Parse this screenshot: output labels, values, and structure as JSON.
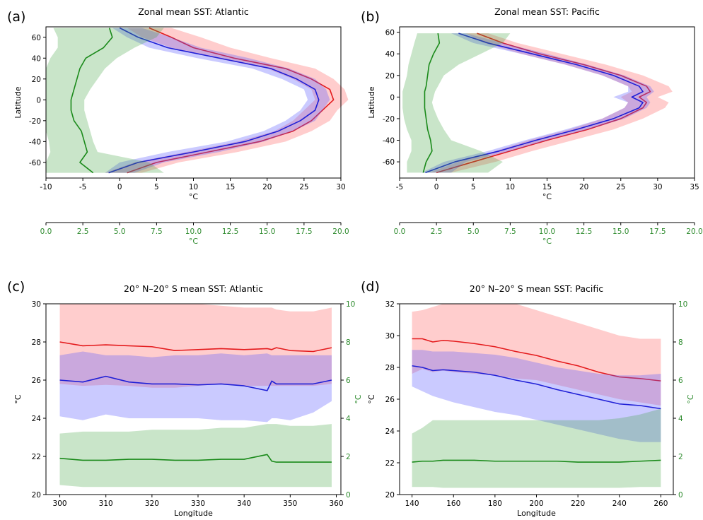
{
  "colors": {
    "red": "#e41a1c",
    "blue": "#1f1fd6",
    "green": "#1a8a1a",
    "redFill": "rgba(255,90,90,0.30)",
    "blueFill": "rgba(90,90,255,0.32)",
    "greenFill": "rgba(60,160,60,0.28)",
    "greenAxis": "#2e8b2e"
  },
  "chart_data": [
    {
      "id": "a",
      "letter": "(a)",
      "type": "line",
      "orientation": "profile",
      "title": "Zonal mean SST: Atlantic",
      "xlabel": "°C",
      "ylabel": "Latitude",
      "x2label": "°C",
      "xlim": [
        -10,
        30
      ],
      "ylim": [
        -75,
        70
      ],
      "x2lim": [
        0,
        20
      ],
      "xticks": [
        -10,
        -5,
        0,
        5,
        10,
        15,
        20,
        25,
        30
      ],
      "yticks": [
        -60,
        -40,
        -20,
        0,
        20,
        40,
        60
      ],
      "x2ticks": [
        0.0,
        2.5,
        5.0,
        7.5,
        10.0,
        12.5,
        15.0,
        17.5,
        20.0
      ],
      "lat": [
        -70,
        -60,
        -50,
        -40,
        -30,
        -20,
        -10,
        0,
        10,
        20,
        30,
        40,
        50,
        60,
        69
      ],
      "series": [
        {
          "color": "red",
          "mean": [
            1,
            5,
            12,
            19,
            23.5,
            26,
            27.5,
            29,
            28.5,
            26,
            22.5,
            15.5,
            10,
            7,
            4
          ],
          "lower": [
            -2,
            2,
            9,
            16,
            21,
            23.5,
            25,
            26.5,
            26,
            23.5,
            20,
            13,
            7,
            3,
            1
          ],
          "upper": [
            3,
            8,
            16,
            22.5,
            26,
            28.5,
            29.5,
            31,
            30.5,
            29,
            26.5,
            20.5,
            15,
            11,
            7
          ]
        },
        {
          "color": "blue",
          "mean": [
            -1.5,
            2.5,
            10,
            17,
            21.5,
            24.5,
            26.5,
            27,
            26.5,
            24,
            20.5,
            13.5,
            6.5,
            2.5,
            0
          ],
          "lower": [
            -2,
            0,
            6.5,
            14.5,
            19.5,
            22.5,
            24.5,
            25.5,
            25,
            22,
            18,
            10.5,
            4,
            1,
            -1
          ],
          "upper": [
            2,
            6,
            13.5,
            19.5,
            23.5,
            26.5,
            27.5,
            28.5,
            28,
            26.5,
            23,
            17.5,
            11,
            7,
            3
          ]
        },
        {
          "color": "green",
          "axis": "x2",
          "mean": [
            3.2,
            2.3,
            2.8,
            2.6,
            2.4,
            1.9,
            1.7,
            1.7,
            1.9,
            2.1,
            2.3,
            2.7,
            3.9,
            4.5,
            4.3
          ],
          "lower": [
            0,
            0,
            0.3,
            0.2,
            0,
            0,
            0,
            0,
            0,
            0,
            0,
            0.3,
            0.8,
            0.8,
            0.5
          ],
          "upper": [
            8,
            7,
            3.5,
            3.2,
            3.0,
            2.8,
            2.6,
            2.6,
            3.0,
            3.5,
            4.0,
            4.8,
            6.0,
            7.5,
            8
          ]
        }
      ]
    },
    {
      "id": "b",
      "letter": "(b)",
      "type": "line",
      "orientation": "profile",
      "title": "Zonal mean SST: Pacific",
      "xlabel": "°C",
      "ylabel": "Latitude",
      "x2label": "°C",
      "xlim": [
        -5,
        35
      ],
      "ylim": [
        -75,
        65
      ],
      "x2lim": [
        0,
        20
      ],
      "xticks": [
        -5,
        0,
        5,
        10,
        15,
        20,
        25,
        30,
        35
      ],
      "yticks": [
        -60,
        -40,
        -20,
        0,
        20,
        40,
        60
      ],
      "x2ticks": [
        0.0,
        2.5,
        5.0,
        7.5,
        10.0,
        12.5,
        15.0,
        17.5,
        20.0
      ],
      "lat": [
        -70,
        -60,
        -50,
        -40,
        -30,
        -20,
        -10,
        -5,
        0,
        5,
        10,
        20,
        30,
        40,
        50,
        59
      ],
      "series": [
        {
          "color": "red",
          "mean": [
            0,
            5,
            10,
            15,
            20.5,
            25,
            28,
            28.5,
            27.5,
            29,
            28.5,
            25,
            20,
            14,
            9,
            5.5
          ],
          "lower": [
            -1,
            3,
            8,
            12.5,
            18,
            22.5,
            25.5,
            26,
            25,
            26.5,
            26,
            22.5,
            17.5,
            11.5,
            6.5,
            4
          ],
          "upper": [
            2,
            8,
            13,
            18.5,
            24,
            28,
            31,
            31.5,
            30,
            32,
            31.5,
            28,
            23,
            17,
            11,
            7
          ]
        },
        {
          "color": "blue",
          "mean": [
            -1.5,
            2.5,
            8.5,
            13.5,
            19,
            24,
            27.5,
            28,
            26.5,
            28,
            27.5,
            24,
            19,
            13,
            7,
            3
          ],
          "lower": [
            -2,
            1,
            7,
            12,
            17.5,
            22.5,
            25.5,
            26,
            24,
            26,
            26,
            22.5,
            17.5,
            11.5,
            5,
            2
          ],
          "upper": [
            2,
            4,
            10,
            15,
            20.5,
            25.5,
            28.5,
            29,
            28.5,
            29.5,
            29,
            25.5,
            20.5,
            15,
            9,
            4
          ]
        },
        {
          "color": "green",
          "axis": "x2",
          "mean": [
            1.6,
            1.8,
            2.2,
            2.1,
            1.9,
            1.8,
            1.7,
            1.7,
            1.7,
            1.7,
            1.8,
            1.9,
            2.0,
            2.3,
            2.7,
            2.6
          ],
          "lower": [
            0.5,
            0.5,
            0.8,
            0.8,
            0.5,
            0.3,
            0.2,
            0.2,
            0.2,
            0.2,
            0.3,
            0.5,
            0.6,
            0.8,
            1.0,
            1.2
          ],
          "upper": [
            6,
            7,
            5.5,
            3.5,
            3.0,
            2.6,
            2.3,
            2.2,
            2.3,
            2.4,
            2.6,
            3.0,
            4.0,
            5.5,
            7.0,
            7.5
          ]
        }
      ]
    },
    {
      "id": "c",
      "letter": "(c)",
      "type": "line",
      "orientation": "series",
      "title": "20° N–20° S mean SST: Atlantic",
      "xlabel": "Longitude",
      "ylabel": "°C",
      "y2label": "°C",
      "xlim": [
        297,
        361
      ],
      "ylim": [
        20,
        30
      ],
      "y2lim": [
        0,
        10
      ],
      "xticks": [
        300,
        310,
        320,
        330,
        340,
        350,
        360
      ],
      "yticks": [
        20,
        22,
        24,
        26,
        28,
        30
      ],
      "y2ticks": [
        0,
        2,
        4,
        6,
        8,
        10
      ],
      "x": [
        300,
        305,
        310,
        315,
        320,
        325,
        330,
        335,
        340,
        345,
        346,
        347,
        350,
        355,
        359
      ],
      "series": [
        {
          "color": "red",
          "mean": [
            28.0,
            27.8,
            27.85,
            27.8,
            27.75,
            27.55,
            27.6,
            27.65,
            27.6,
            27.65,
            27.6,
            27.7,
            27.55,
            27.5,
            27.7
          ],
          "lower": [
            25.8,
            25.7,
            25.75,
            25.7,
            25.6,
            25.6,
            25.7,
            25.8,
            25.7,
            25.7,
            25.7,
            25.7,
            25.7,
            25.7,
            25.8
          ],
          "upper": [
            30.0,
            30.0,
            30.0,
            30.0,
            30.0,
            30.0,
            30.0,
            29.9,
            29.8,
            29.8,
            29.8,
            29.7,
            29.6,
            29.6,
            29.8
          ]
        },
        {
          "color": "blue",
          "mean": [
            26.0,
            25.9,
            26.2,
            25.9,
            25.8,
            25.8,
            25.75,
            25.8,
            25.7,
            25.45,
            25.95,
            25.8,
            25.8,
            25.8,
            26.0
          ],
          "lower": [
            24.1,
            23.9,
            24.2,
            24.0,
            24.0,
            24.0,
            24.0,
            23.9,
            23.9,
            23.8,
            24.0,
            24.0,
            23.9,
            24.3,
            24.9
          ],
          "upper": [
            27.3,
            27.5,
            27.3,
            27.3,
            27.2,
            27.3,
            27.3,
            27.4,
            27.3,
            27.4,
            27.3,
            27.3,
            27.3,
            27.3,
            27.3
          ]
        },
        {
          "color": "green",
          "axis": "y2",
          "mean": [
            1.9,
            1.8,
            1.8,
            1.85,
            1.85,
            1.8,
            1.8,
            1.85,
            1.85,
            2.1,
            1.75,
            1.7,
            1.7,
            1.7,
            1.7
          ],
          "lower": [
            0.5,
            0.4,
            0.4,
            0.4,
            0.4,
            0.4,
            0.4,
            0.4,
            0.4,
            0.4,
            0.4,
            0.4,
            0.4,
            0.4,
            0.4
          ],
          "upper": [
            3.2,
            3.3,
            3.3,
            3.3,
            3.4,
            3.4,
            3.4,
            3.5,
            3.5,
            3.7,
            3.7,
            3.7,
            3.6,
            3.6,
            3.7
          ]
        }
      ]
    },
    {
      "id": "d",
      "letter": "(d)",
      "type": "line",
      "orientation": "series",
      "title": "20° N–20° S mean SST: Pacific",
      "xlabel": "Longitude",
      "ylabel": "°C",
      "y2label": "°C",
      "xlim": [
        134,
        266
      ],
      "ylim": [
        20,
        32
      ],
      "y2lim": [
        0,
        10
      ],
      "xticks": [
        140,
        160,
        180,
        200,
        220,
        240,
        260
      ],
      "yticks": [
        20,
        22,
        24,
        26,
        28,
        30,
        32
      ],
      "y2ticks": [
        0,
        2,
        4,
        6,
        8,
        10
      ],
      "x": [
        140,
        145,
        150,
        155,
        160,
        170,
        180,
        190,
        200,
        210,
        220,
        230,
        240,
        250,
        260
      ],
      "series": [
        {
          "color": "red",
          "mean": [
            29.8,
            29.8,
            29.6,
            29.7,
            29.65,
            29.5,
            29.3,
            29.0,
            28.75,
            28.4,
            28.1,
            27.7,
            27.4,
            27.3,
            27.15
          ],
          "lower": [
            27.6,
            27.9,
            27.7,
            27.8,
            27.7,
            27.6,
            27.5,
            27.3,
            27.2,
            26.9,
            26.6,
            26.3,
            26.0,
            25.8,
            25.6
          ],
          "upper": [
            31.5,
            31.6,
            31.8,
            32.0,
            32.0,
            32.0,
            32.0,
            32.0,
            31.6,
            31.2,
            30.8,
            30.4,
            30.0,
            29.8,
            29.8
          ]
        },
        {
          "color": "blue",
          "mean": [
            28.1,
            28.0,
            27.8,
            27.85,
            27.8,
            27.7,
            27.5,
            27.2,
            26.95,
            26.6,
            26.3,
            26.0,
            25.7,
            25.6,
            25.4
          ],
          "lower": [
            26.8,
            26.5,
            26.2,
            26.0,
            25.8,
            25.5,
            25.2,
            25.0,
            24.7,
            24.4,
            24.1,
            23.8,
            23.5,
            23.3,
            23.3
          ],
          "upper": [
            29.1,
            29.1,
            29.0,
            29.0,
            29.0,
            28.9,
            28.8,
            28.6,
            28.3,
            28.0,
            27.8,
            27.6,
            27.5,
            27.5,
            27.6
          ]
        },
        {
          "color": "green",
          "axis": "y2",
          "mean": [
            1.7,
            1.75,
            1.75,
            1.8,
            1.8,
            1.8,
            1.75,
            1.75,
            1.75,
            1.75,
            1.7,
            1.7,
            1.7,
            1.75,
            1.8
          ],
          "lower": [
            0.4,
            0.4,
            0.4,
            0.35,
            0.35,
            0.35,
            0.35,
            0.35,
            0.35,
            0.35,
            0.35,
            0.35,
            0.35,
            0.4,
            0.4
          ],
          "upper": [
            3.2,
            3.5,
            3.9,
            3.9,
            3.9,
            3.9,
            3.9,
            3.9,
            3.9,
            3.9,
            3.9,
            3.9,
            4.0,
            4.2,
            4.5
          ]
        }
      ]
    }
  ]
}
